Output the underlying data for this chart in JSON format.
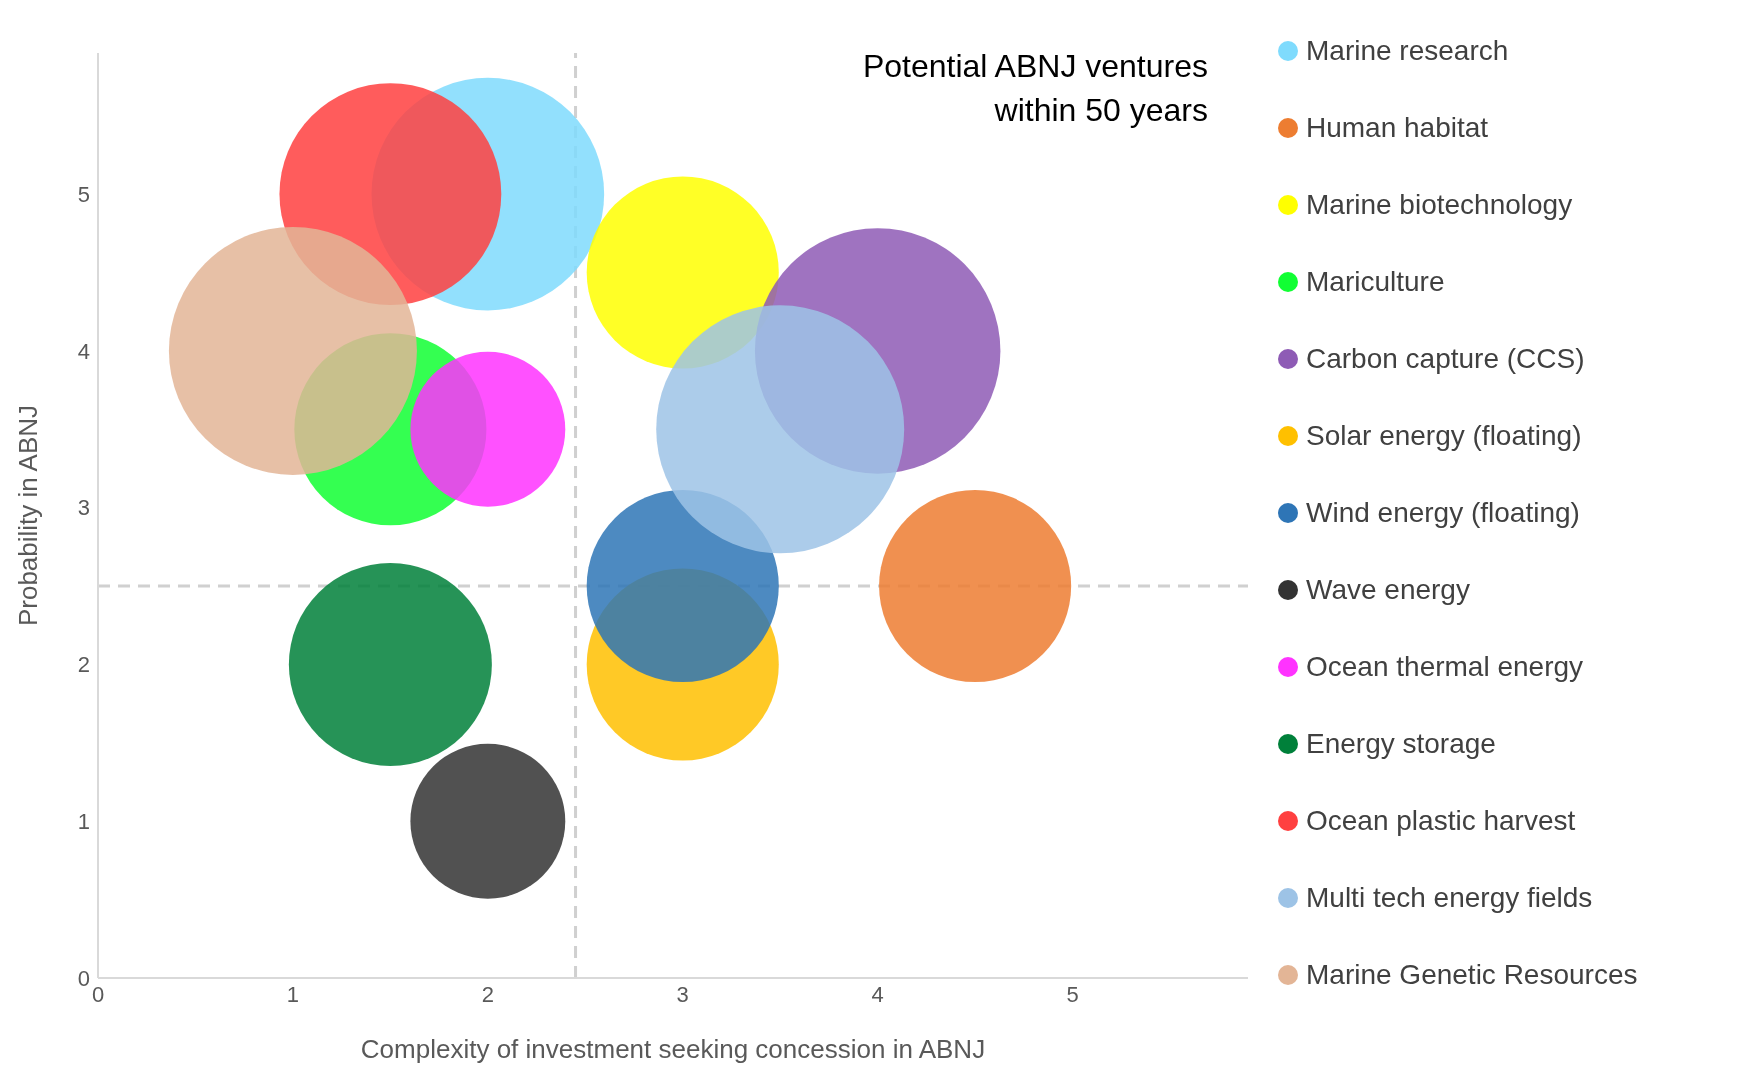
{
  "chart_data": {
    "type": "bubble",
    "xlabel": "Complexity of investment seeking concession in ABNJ",
    "ylabel": "Probability in ABNJ",
    "annotations": [
      "Potential ABNJ ventures within 50 years"
    ],
    "xlim": [
      0,
      5.9
    ],
    "xticks": [
      0,
      1,
      2,
      3,
      4,
      5
    ],
    "ylim": [
      0,
      5.9
    ],
    "yticks": [
      0,
      1,
      2,
      3,
      4,
      5
    ],
    "legend": "right",
    "ref_lines": [
      {
        "axis": "x",
        "value": 2.45,
        "color": "#d0d0d0",
        "line_style": "dashed"
      },
      {
        "axis": "y",
        "value": 2.5,
        "color": "#d0d0d0",
        "line_style": "dashed"
      }
    ],
    "series": [
      {
        "name": "Marine research",
        "color": "#7fdbfd",
        "x": [
          2
        ],
        "values": [
          5
        ],
        "sizes": [
          0.88
        ]
      },
      {
        "name": "Human habitat",
        "color": "#ed7d31",
        "x": [
          4.5
        ],
        "values": [
          2.5
        ],
        "sizes": [
          0.6
        ]
      },
      {
        "name": "Marine biotechnology",
        "color": "#ffff00",
        "x": [
          3
        ],
        "values": [
          4.5
        ],
        "sizes": [
          0.6
        ]
      },
      {
        "name": "Mariculture",
        "color": "#11ff33",
        "x": [
          1.5
        ],
        "values": [
          3.5
        ],
        "sizes": [
          0.6
        ]
      },
      {
        "name": "Carbon capture (CCS)",
        "color": "#8e5bb5",
        "x": [
          4
        ],
        "values": [
          4
        ],
        "sizes": [
          0.98
        ]
      },
      {
        "name": "Solar energy (floating)",
        "color": "#ffc000",
        "x": [
          3
        ],
        "values": [
          2
        ],
        "sizes": [
          0.6
        ]
      },
      {
        "name": "Wind energy (floating)",
        "color": "#2e75b6",
        "x": [
          3
        ],
        "values": [
          2.5
        ],
        "sizes": [
          0.6
        ]
      },
      {
        "name": "Wave energy",
        "color": "#333333",
        "x": [
          2
        ],
        "values": [
          1
        ],
        "sizes": [
          0.39
        ]
      },
      {
        "name": "Ocean thermal energy",
        "color": "#ff33ff",
        "x": [
          2
        ],
        "values": [
          3.5
        ],
        "sizes": [
          0.39
        ]
      },
      {
        "name": "Energy storage",
        "color": "#00803a",
        "x": [
          1.5
        ],
        "values": [
          2
        ],
        "sizes": [
          0.67
        ]
      },
      {
        "name": "Ocean plastic harvest",
        "color": "#ff4040",
        "x": [
          1.5
        ],
        "values": [
          5
        ],
        "sizes": [
          0.8
        ]
      },
      {
        "name": "Multi tech energy fields",
        "color": "#9dc3e6",
        "x": [
          3.5
        ],
        "values": [
          3.5
        ],
        "sizes": [
          1
        ]
      },
      {
        "name": "Marine Genetic Resources",
        "color": "#e3b596",
        "x": [
          1
        ],
        "values": [
          4
        ],
        "sizes": [
          1
        ]
      }
    ]
  }
}
